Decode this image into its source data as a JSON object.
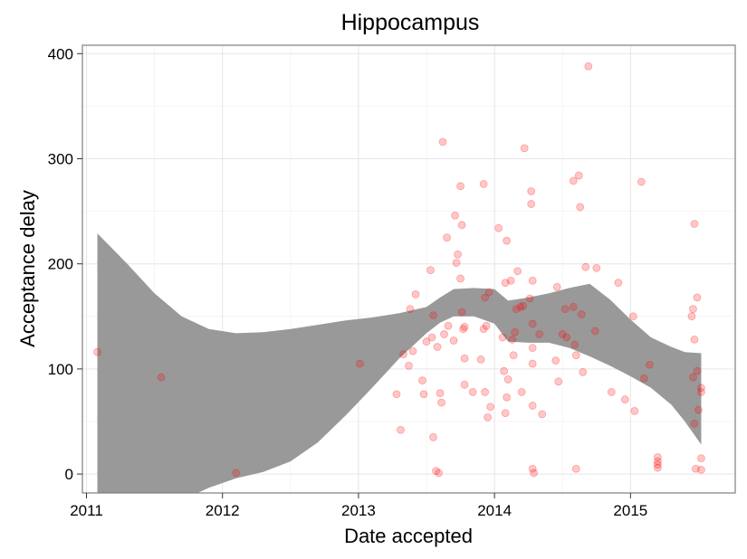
{
  "chart_data": {
    "type": "scatter",
    "title": "Hippocampus",
    "xlabel": "Date accepted",
    "ylabel": "Acceptance delay",
    "xlim": [
      2010.97,
      2015.77
    ],
    "ylim": [
      -18,
      408
    ],
    "xticks": [
      2011,
      2012,
      2013,
      2014,
      2015
    ],
    "yticks": [
      0,
      100,
      200,
      300,
      400
    ],
    "grid": true,
    "point_color": "#ff0000",
    "band_color": "#999999",
    "band": {
      "x": [
        2011.08,
        2011.3,
        2011.5,
        2011.7,
        2011.9,
        2012.1,
        2012.3,
        2012.5,
        2012.7,
        2012.9,
        2013.1,
        2013.3,
        2013.5,
        2013.6,
        2013.7,
        2013.85,
        2014.0,
        2014.1,
        2014.25,
        2014.4,
        2014.55,
        2014.7,
        2014.85,
        2015.0,
        2015.15,
        2015.3,
        2015.4,
        2015.52
      ],
      "upper": [
        229,
        200,
        172,
        150,
        138,
        134,
        135,
        138,
        142,
        146,
        149,
        153,
        159,
        168,
        176,
        177,
        176,
        165,
        168,
        172,
        177,
        181,
        166,
        147,
        130,
        121,
        116,
        115
      ],
      "lower": [
        -30,
        -30,
        -30,
        -25,
        -13,
        -4,
        2,
        12,
        30,
        55,
        82,
        110,
        134,
        144,
        150,
        150,
        143,
        126,
        125,
        125,
        120,
        112,
        103,
        93,
        82,
        66,
        50,
        28
      ]
    },
    "points": [
      {
        "x": 2011.08,
        "y": 116
      },
      {
        "x": 2011.55,
        "y": 92
      },
      {
        "x": 2012.1,
        "y": 1
      },
      {
        "x": 2013.01,
        "y": 105
      },
      {
        "x": 2013.28,
        "y": 76
      },
      {
        "x": 2013.31,
        "y": 42
      },
      {
        "x": 2013.33,
        "y": 114
      },
      {
        "x": 2013.37,
        "y": 103
      },
      {
        "x": 2013.38,
        "y": 157
      },
      {
        "x": 2013.4,
        "y": 117
      },
      {
        "x": 2013.42,
        "y": 171
      },
      {
        "x": 2013.47,
        "y": 89
      },
      {
        "x": 2013.48,
        "y": 76
      },
      {
        "x": 2013.5,
        "y": 126
      },
      {
        "x": 2013.53,
        "y": 194
      },
      {
        "x": 2013.54,
        "y": 130
      },
      {
        "x": 2013.55,
        "y": 151
      },
      {
        "x": 2013.55,
        "y": 35
      },
      {
        "x": 2013.57,
        "y": 3
      },
      {
        "x": 2013.58,
        "y": 121
      },
      {
        "x": 2013.59,
        "y": 1
      },
      {
        "x": 2013.6,
        "y": 77
      },
      {
        "x": 2013.61,
        "y": 68
      },
      {
        "x": 2013.62,
        "y": 316
      },
      {
        "x": 2013.63,
        "y": 133
      },
      {
        "x": 2013.65,
        "y": 225
      },
      {
        "x": 2013.66,
        "y": 141
      },
      {
        "x": 2013.7,
        "y": 127
      },
      {
        "x": 2013.71,
        "y": 246
      },
      {
        "x": 2013.72,
        "y": 201
      },
      {
        "x": 2013.73,
        "y": 209
      },
      {
        "x": 2013.75,
        "y": 186
      },
      {
        "x": 2013.75,
        "y": 274
      },
      {
        "x": 2013.76,
        "y": 237
      },
      {
        "x": 2013.76,
        "y": 154
      },
      {
        "x": 2013.77,
        "y": 138
      },
      {
        "x": 2013.78,
        "y": 140
      },
      {
        "x": 2013.78,
        "y": 110
      },
      {
        "x": 2013.78,
        "y": 85
      },
      {
        "x": 2013.84,
        "y": 78
      },
      {
        "x": 2013.9,
        "y": 109
      },
      {
        "x": 2013.92,
        "y": 138
      },
      {
        "x": 2013.92,
        "y": 276
      },
      {
        "x": 2013.93,
        "y": 168
      },
      {
        "x": 2013.93,
        "y": 78
      },
      {
        "x": 2013.94,
        "y": 141
      },
      {
        "x": 2013.95,
        "y": 54
      },
      {
        "x": 2013.96,
        "y": 173
      },
      {
        "x": 2013.97,
        "y": 64
      },
      {
        "x": 2014.03,
        "y": 234
      },
      {
        "x": 2014.06,
        "y": 130
      },
      {
        "x": 2014.07,
        "y": 98
      },
      {
        "x": 2014.08,
        "y": 182
      },
      {
        "x": 2014.08,
        "y": 58
      },
      {
        "x": 2014.09,
        "y": 73
      },
      {
        "x": 2014.09,
        "y": 222
      },
      {
        "x": 2014.1,
        "y": 90
      },
      {
        "x": 2014.12,
        "y": 184
      },
      {
        "x": 2014.13,
        "y": 128
      },
      {
        "x": 2014.14,
        "y": 113
      },
      {
        "x": 2014.15,
        "y": 135
      },
      {
        "x": 2014.16,
        "y": 157
      },
      {
        "x": 2014.17,
        "y": 193
      },
      {
        "x": 2014.19,
        "y": 159
      },
      {
        "x": 2014.2,
        "y": 78
      },
      {
        "x": 2014.21,
        "y": 160
      },
      {
        "x": 2014.22,
        "y": 310
      },
      {
        "x": 2014.26,
        "y": 167
      },
      {
        "x": 2014.27,
        "y": 257
      },
      {
        "x": 2014.27,
        "y": 269
      },
      {
        "x": 2014.28,
        "y": 184
      },
      {
        "x": 2014.28,
        "y": 143
      },
      {
        "x": 2014.28,
        "y": 120
      },
      {
        "x": 2014.28,
        "y": 105
      },
      {
        "x": 2014.28,
        "y": 65
      },
      {
        "x": 2014.28,
        "y": 5
      },
      {
        "x": 2014.29,
        "y": 1
      },
      {
        "x": 2014.33,
        "y": 133
      },
      {
        "x": 2014.35,
        "y": 57
      },
      {
        "x": 2014.45,
        "y": 108
      },
      {
        "x": 2014.46,
        "y": 178
      },
      {
        "x": 2014.47,
        "y": 88
      },
      {
        "x": 2014.5,
        "y": 133
      },
      {
        "x": 2014.52,
        "y": 157
      },
      {
        "x": 2014.53,
        "y": 130
      },
      {
        "x": 2014.58,
        "y": 279
      },
      {
        "x": 2014.58,
        "y": 159
      },
      {
        "x": 2014.59,
        "y": 123
      },
      {
        "x": 2014.6,
        "y": 113
      },
      {
        "x": 2014.6,
        "y": 5
      },
      {
        "x": 2014.62,
        "y": 284
      },
      {
        "x": 2014.63,
        "y": 254
      },
      {
        "x": 2014.64,
        "y": 152
      },
      {
        "x": 2014.65,
        "y": 97
      },
      {
        "x": 2014.67,
        "y": 197
      },
      {
        "x": 2014.69,
        "y": 388
      },
      {
        "x": 2014.74,
        "y": 136
      },
      {
        "x": 2014.75,
        "y": 196
      },
      {
        "x": 2014.86,
        "y": 78
      },
      {
        "x": 2014.91,
        "y": 182
      },
      {
        "x": 2014.96,
        "y": 71
      },
      {
        "x": 2015.02,
        "y": 150
      },
      {
        "x": 2015.03,
        "y": 60
      },
      {
        "x": 2015.08,
        "y": 278
      },
      {
        "x": 2015.1,
        "y": 91
      },
      {
        "x": 2015.14,
        "y": 104
      },
      {
        "x": 2015.2,
        "y": 16
      },
      {
        "x": 2015.2,
        "y": 12
      },
      {
        "x": 2015.2,
        "y": 9
      },
      {
        "x": 2015.2,
        "y": 6
      },
      {
        "x": 2015.45,
        "y": 150
      },
      {
        "x": 2015.46,
        "y": 157
      },
      {
        "x": 2015.46,
        "y": 92
      },
      {
        "x": 2015.47,
        "y": 238
      },
      {
        "x": 2015.47,
        "y": 128
      },
      {
        "x": 2015.47,
        "y": 48
      },
      {
        "x": 2015.48,
        "y": 5
      },
      {
        "x": 2015.49,
        "y": 168
      },
      {
        "x": 2015.49,
        "y": 98
      },
      {
        "x": 2015.5,
        "y": 61
      },
      {
        "x": 2015.52,
        "y": 82
      },
      {
        "x": 2015.52,
        "y": 78
      },
      {
        "x": 2015.52,
        "y": 15
      },
      {
        "x": 2015.52,
        "y": 4
      }
    ]
  }
}
